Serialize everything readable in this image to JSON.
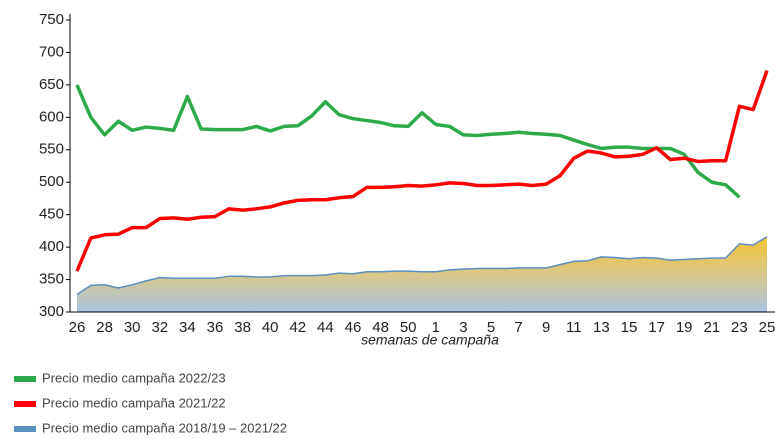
{
  "chart_data": {
    "type": "line",
    "x_label": "semanas de campaña",
    "categories": [
      26,
      null,
      28,
      null,
      30,
      null,
      32,
      null,
      34,
      null,
      36,
      null,
      38,
      null,
      40,
      null,
      42,
      null,
      44,
      null,
      46,
      null,
      48,
      null,
      50,
      null,
      1,
      null,
      3,
      null,
      5,
      null,
      7,
      null,
      9,
      null,
      11,
      null,
      13,
      null,
      15,
      null,
      17,
      null,
      19,
      null,
      21,
      null,
      23,
      null,
      25
    ],
    "ylim": [
      300,
      750
    ],
    "yticks": [
      300,
      350,
      400,
      450,
      500,
      550,
      600,
      650,
      700,
      750
    ],
    "grid": false,
    "legend": "bottom-left",
    "series": [
      {
        "name": "Precio medio campaña 2022/23",
        "color": "#2eaa4a",
        "style": "line",
        "values": [
          650,
          600,
          573,
          594,
          580,
          585,
          583,
          580,
          632,
          582,
          581,
          581,
          581,
          586,
          579,
          586,
          587,
          602,
          624,
          604,
          598,
          595,
          592,
          587,
          586,
          607,
          589,
          586,
          573,
          572,
          574,
          575,
          577,
          575,
          574,
          572,
          565,
          558,
          552,
          554,
          554,
          552,
          552,
          552,
          543,
          515,
          500,
          496,
          477,
          null,
          null
        ]
      },
      {
        "name": "Precio medio campaña 2021/22",
        "color": "#ff0000",
        "style": "line",
        "values": [
          363,
          414,
          419,
          420,
          430,
          430,
          444,
          445,
          443,
          446,
          447,
          459,
          457,
          459,
          462,
          468,
          472,
          473,
          473,
          476,
          478,
          492,
          492,
          493,
          495,
          494,
          496,
          499,
          498,
          495,
          495,
          496,
          497,
          495,
          497,
          510,
          537,
          548,
          545,
          539,
          540,
          543,
          553,
          535,
          537,
          532,
          533,
          533,
          617,
          612,
          672
        ]
      },
      {
        "name": "Precio medio campaña 2018/19 – 2021/22",
        "color": "#5b8fc0",
        "style": "area",
        "values": [
          327,
          341,
          342,
          337,
          342,
          348,
          353,
          352,
          352,
          352,
          352,
          355,
          355,
          354,
          354,
          356,
          356,
          356,
          357,
          360,
          359,
          362,
          362,
          363,
          363,
          362,
          362,
          365,
          366,
          367,
          367,
          367,
          368,
          368,
          368,
          373,
          378,
          379,
          385,
          384,
          382,
          384,
          383,
          380,
          381,
          382,
          383,
          383,
          405,
          403,
          416
        ]
      }
    ]
  }
}
